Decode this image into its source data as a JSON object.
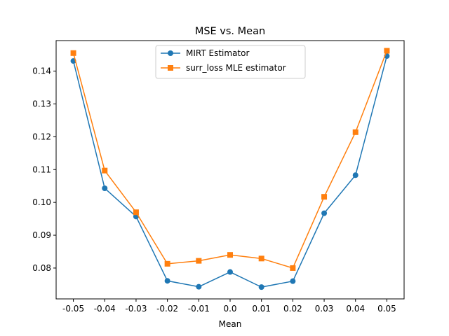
{
  "chart_data": {
    "type": "line",
    "title": "MSE vs. Mean",
    "xlabel": "Mean",
    "ylabel": "",
    "x": [
      -0.05,
      -0.04,
      -0.03,
      -0.02,
      -0.01,
      0.0,
      0.01,
      0.02,
      0.03,
      0.04,
      0.05
    ],
    "x_tick_labels": [
      "-0.05",
      "-0.04",
      "-0.03",
      "-0.02",
      "-0.01",
      "0.0",
      "0.01",
      "0.02",
      "0.03",
      "0.04",
      "0.05"
    ],
    "y_ticks": [
      0.08,
      0.09,
      0.1,
      0.11,
      0.12,
      0.13,
      0.14
    ],
    "y_tick_labels": [
      "0.08",
      "0.09",
      "0.10",
      "0.11",
      "0.12",
      "0.13",
      "0.14"
    ],
    "xlim": [
      -0.0555,
      0.0555
    ],
    "ylim": [
      0.0706,
      0.1493
    ],
    "grid": false,
    "legend_position": "top-center",
    "series": [
      {
        "name": "MIRT Estimator",
        "color": "#1f77b4",
        "marker": "circle",
        "values": [
          0.1431,
          0.1043,
          0.0957,
          0.0761,
          0.0743,
          0.0788,
          0.0742,
          0.076,
          0.0967,
          0.1083,
          0.1446
        ]
      },
      {
        "name": "surr_loss MLE estimator",
        "color": "#ff7f0e",
        "marker": "square",
        "values": [
          0.1455,
          0.1097,
          0.097,
          0.0813,
          0.0822,
          0.084,
          0.0829,
          0.08,
          0.1017,
          0.1214,
          0.1462
        ]
      }
    ]
  }
}
